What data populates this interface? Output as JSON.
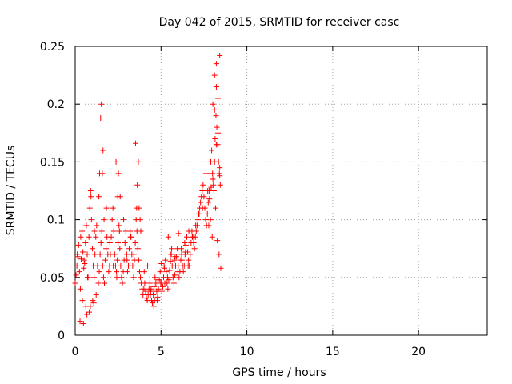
{
  "chart_data": {
    "type": "scatter",
    "title": "Day 042 of 2015, SRMTID for receiver casc",
    "xlabel": "GPS time / hours",
    "ylabel": "SRMTID / TECUs",
    "xlim": [
      0,
      24
    ],
    "ylim": [
      0,
      0.25
    ],
    "xticks": [
      0,
      5,
      10,
      15,
      20
    ],
    "xtick_labels": [
      "0",
      "5",
      "10",
      "15",
      "20"
    ],
    "yticks": [
      0,
      0.05,
      0.1,
      0.15,
      0.2,
      0.25
    ],
    "ytick_labels": [
      "0",
      "0.05",
      "0.1",
      "0.15",
      "0.2",
      "0.25"
    ],
    "grid": true,
    "marker": "+",
    "marker_color": "#ff0000",
    "series": [
      {
        "name": "SRMTID",
        "x": [
          0.0,
          0.05,
          0.1,
          0.15,
          0.2,
          0.25,
          0.3,
          0.35,
          0.4,
          0.45,
          0.5,
          0.55,
          0.6,
          0.65,
          0.7,
          0.75,
          0.8,
          0.85,
          0.9,
          0.95,
          1.0,
          1.05,
          1.1,
          1.15,
          1.2,
          1.25,
          1.3,
          1.35,
          1.4,
          1.45,
          1.5,
          1.55,
          1.6,
          1.65,
          1.7,
          1.75,
          1.8,
          1.85,
          1.9,
          1.95,
          2.0,
          2.05,
          2.1,
          2.15,
          2.2,
          2.25,
          2.3,
          2.35,
          2.4,
          2.45,
          2.5,
          2.55,
          2.6,
          2.65,
          2.7,
          2.75,
          2.8,
          2.85,
          2.9,
          2.95,
          3.0,
          3.05,
          3.1,
          3.15,
          3.2,
          3.25,
          3.3,
          3.35,
          3.4,
          3.45,
          3.5,
          3.55,
          3.6,
          3.65,
          3.7,
          3.75,
          3.8,
          3.85,
          3.9,
          3.95,
          4.0,
          4.05,
          4.1,
          4.15,
          4.2,
          4.25,
          4.3,
          4.35,
          4.4,
          4.45,
          4.5,
          4.55,
          4.6,
          4.65,
          4.7,
          4.75,
          4.8,
          4.85,
          4.9,
          4.95,
          5.0,
          5.05,
          5.1,
          5.15,
          5.2,
          5.25,
          5.3,
          5.35,
          5.4,
          5.45,
          5.5,
          5.55,
          5.6,
          5.65,
          5.7,
          5.75,
          5.8,
          5.85,
          5.9,
          5.95,
          6.0,
          6.05,
          6.1,
          6.15,
          6.2,
          6.25,
          6.3,
          6.35,
          6.4,
          6.45,
          6.5,
          6.55,
          6.6,
          6.65,
          6.7,
          6.75,
          6.8,
          6.85,
          6.9,
          6.95,
          7.0,
          7.05,
          7.1,
          7.15,
          7.2,
          7.25,
          7.3,
          7.35,
          7.4,
          7.45,
          7.5,
          7.55,
          7.6,
          7.65,
          7.7,
          7.75,
          7.8,
          7.85,
          7.9,
          7.95,
          8.0,
          8.05,
          8.1,
          8.15,
          8.2,
          8.25,
          8.3,
          8.35,
          8.4,
          8.45,
          0.12,
          0.32,
          0.52,
          0.72,
          0.92,
          1.12,
          1.32,
          1.42,
          1.52,
          1.62,
          1.82,
          2.02,
          2.22,
          2.42,
          2.52,
          2.62,
          2.82,
          3.02,
          3.22,
          3.42,
          3.52,
          3.62,
          3.72,
          3.82,
          4.02,
          4.22,
          4.42,
          4.62,
          4.82,
          5.02,
          5.22,
          5.42,
          5.62,
          5.82,
          6.02,
          6.22,
          6.42,
          6.62,
          6.82,
          7.02,
          7.22,
          7.42,
          7.62,
          7.72,
          7.82,
          7.92,
          8.02,
          8.12,
          8.22,
          8.32,
          8.42,
          8.02,
          8.12,
          8.22,
          8.32,
          8.42,
          8.22,
          8.32,
          8.42,
          8.12,
          0.42,
          0.62,
          0.82,
          1.02,
          1.22,
          1.38,
          1.48,
          1.58,
          1.68,
          2.38,
          2.48,
          2.58,
          3.58,
          3.68,
          3.78,
          4.38,
          4.58,
          4.78,
          4.98,
          5.18,
          5.38,
          5.58,
          5.78,
          5.98,
          6.18,
          6.38,
          6.58,
          7.78,
          7.88,
          7.98,
          8.08,
          8.18,
          8.28,
          8.38,
          8.48,
          0.28,
          0.48,
          0.68,
          0.88,
          1.08
        ],
        "y": [
          0.045,
          0.052,
          0.06,
          0.068,
          0.078,
          0.055,
          0.04,
          0.066,
          0.09,
          0.072,
          0.058,
          0.062,
          0.08,
          0.095,
          0.07,
          0.05,
          0.085,
          0.11,
          0.125,
          0.1,
          0.075,
          0.06,
          0.05,
          0.07,
          0.085,
          0.095,
          0.06,
          0.045,
          0.055,
          0.07,
          0.08,
          0.09,
          0.06,
          0.05,
          0.045,
          0.065,
          0.075,
          0.085,
          0.07,
          0.055,
          0.06,
          0.07,
          0.085,
          0.1,
          0.11,
          0.09,
          0.07,
          0.06,
          0.055,
          0.065,
          0.08,
          0.095,
          0.075,
          0.06,
          0.05,
          0.045,
          0.055,
          0.065,
          0.08,
          0.09,
          0.07,
          0.055,
          0.06,
          0.075,
          0.09,
          0.085,
          0.07,
          0.06,
          0.05,
          0.065,
          0.08,
          0.1,
          0.09,
          0.075,
          0.065,
          0.055,
          0.05,
          0.045,
          0.04,
          0.035,
          0.04,
          0.045,
          0.038,
          0.032,
          0.03,
          0.035,
          0.04,
          0.045,
          0.038,
          0.03,
          0.028,
          0.035,
          0.042,
          0.05,
          0.045,
          0.038,
          0.033,
          0.04,
          0.048,
          0.055,
          0.045,
          0.038,
          0.042,
          0.05,
          0.058,
          0.065,
          0.055,
          0.045,
          0.04,
          0.048,
          0.056,
          0.064,
          0.07,
          0.06,
          0.05,
          0.045,
          0.052,
          0.06,
          0.068,
          0.075,
          0.06,
          0.05,
          0.055,
          0.065,
          0.07,
          0.06,
          0.055,
          0.06,
          0.07,
          0.078,
          0.085,
          0.072,
          0.065,
          0.06,
          0.07,
          0.08,
          0.09,
          0.085,
          0.08,
          0.075,
          0.085,
          0.09,
          0.095,
          0.1,
          0.105,
          0.11,
          0.115,
          0.12,
          0.125,
          0.13,
          0.12,
          0.11,
          0.1,
          0.095,
          0.105,
          0.115,
          0.125,
          0.14,
          0.15,
          0.16,
          0.14,
          0.13,
          0.15,
          0.17,
          0.19,
          0.18,
          0.165,
          0.15,
          0.14,
          0.13,
          0.07,
          0.085,
          0.065,
          0.05,
          0.12,
          0.09,
          0.06,
          0.14,
          0.2,
          0.16,
          0.11,
          0.08,
          0.06,
          0.05,
          0.14,
          0.12,
          0.1,
          0.065,
          0.085,
          0.07,
          0.166,
          0.13,
          0.11,
          0.09,
          0.055,
          0.06,
          0.04,
          0.03,
          0.048,
          0.062,
          0.045,
          0.085,
          0.075,
          0.068,
          0.088,
          0.065,
          0.072,
          0.09,
          0.085,
          0.095,
          0.105,
          0.11,
          0.14,
          0.125,
          0.118,
          0.128,
          0.135,
          0.15,
          0.165,
          0.175,
          0.145,
          0.2,
          0.225,
          0.235,
          0.24,
          0.242,
          0.215,
          0.205,
          0.138,
          0.195,
          0.03,
          0.025,
          0.02,
          0.03,
          0.035,
          0.12,
          0.188,
          0.14,
          0.1,
          0.15,
          0.12,
          0.09,
          0.11,
          0.15,
          0.1,
          0.035,
          0.025,
          0.03,
          0.045,
          0.06,
          0.05,
          0.07,
          0.065,
          0.055,
          0.075,
          0.08,
          0.06,
          0.095,
          0.1,
          0.085,
          0.125,
          0.11,
          0.082,
          0.07,
          0.058,
          0.012,
          0.01,
          0.018,
          0.025,
          0.028
        ]
      }
    ]
  }
}
